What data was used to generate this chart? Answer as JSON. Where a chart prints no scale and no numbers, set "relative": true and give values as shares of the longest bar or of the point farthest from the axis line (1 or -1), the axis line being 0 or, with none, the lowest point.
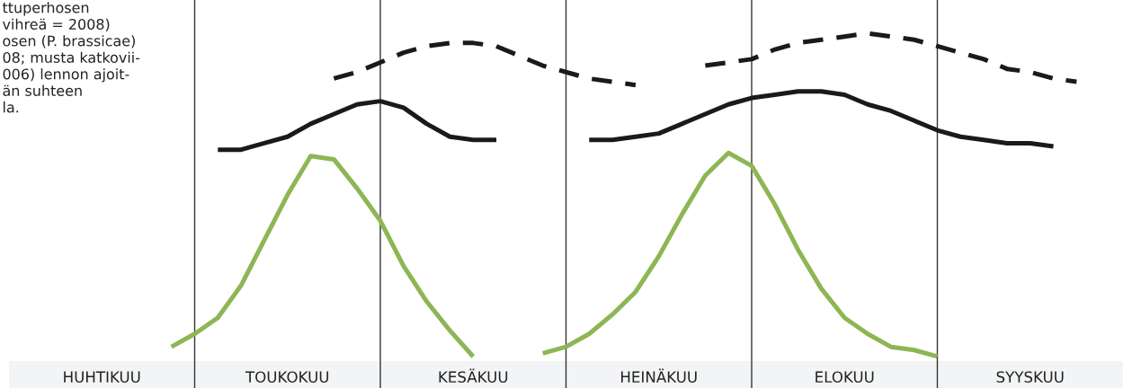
{
  "chart_data": {
    "type": "line",
    "relative": true,
    "annotations": [
      "ttuperhosen\nvihreä = 2008)\nosen (P. brassicae)\n08; musta katkovii-\n006) lennon ajoit-\nän suhteen\nla."
    ],
    "categories": [
      null,
      null,
      null,
      null,
      "HUHTIKUU",
      null,
      null,
      null,
      null,
      null,
      null,
      null,
      "TOUKOKUU",
      null,
      null,
      null,
      null,
      null,
      null,
      null,
      "KESÄKUU",
      null,
      null,
      null,
      null,
      null,
      null,
      null,
      "HEINÄKUU",
      null,
      null,
      null,
      null,
      null,
      null,
      null,
      "ELOKUU",
      null,
      null,
      null,
      null,
      null,
      null,
      null,
      "SYYSKUU",
      null,
      null,
      null
    ],
    "series": [
      {
        "color": "#8db654",
        "line_style": "solid",
        "values": [
          null,
          null,
          null,
          null,
          null,
          null,
          null,
          0.03,
          0.07,
          0.12,
          0.22,
          0.36,
          0.5,
          0.62,
          0.61,
          0.52,
          0.42,
          0.28,
          0.17,
          0.08,
          0.0,
          null,
          null,
          0.01,
          0.03,
          0.07,
          0.13,
          0.2,
          0.31,
          0.44,
          0.56,
          0.63,
          0.59,
          0.47,
          0.33,
          0.21,
          0.12,
          0.07,
          0.03,
          0.02,
          0.0,
          null,
          null,
          null,
          null,
          null,
          null,
          null
        ]
      },
      {
        "color": "#1a1a1a",
        "line_style": "solid",
        "values": [
          null,
          null,
          null,
          null,
          null,
          null,
          null,
          null,
          null,
          0.64,
          0.64,
          0.66,
          0.68,
          0.72,
          0.75,
          0.78,
          0.79,
          0.77,
          0.72,
          0.68,
          0.67,
          0.67,
          null,
          null,
          null,
          0.67,
          0.67,
          0.68,
          0.69,
          0.72,
          0.75,
          0.78,
          0.8,
          0.81,
          0.82,
          0.82,
          0.81,
          0.78,
          0.76,
          0.73,
          0.7,
          0.68,
          0.67,
          0.66,
          0.66,
          0.65,
          null,
          null
        ]
      },
      {
        "color": "#1a1a1a",
        "line_style": "dashed",
        "values": [
          null,
          null,
          null,
          null,
          null,
          null,
          null,
          null,
          null,
          null,
          null,
          null,
          null,
          null,
          0.86,
          0.88,
          0.91,
          0.94,
          0.96,
          0.97,
          0.97,
          0.96,
          0.93,
          0.9,
          0.88,
          0.86,
          0.85,
          0.84,
          null,
          null,
          0.9,
          0.91,
          0.92,
          0.95,
          0.97,
          0.98,
          0.99,
          1.0,
          0.99,
          0.98,
          0.96,
          0.94,
          0.92,
          0.89,
          0.88,
          0.86,
          0.85,
          null
        ]
      }
    ],
    "grid": "x"
  }
}
